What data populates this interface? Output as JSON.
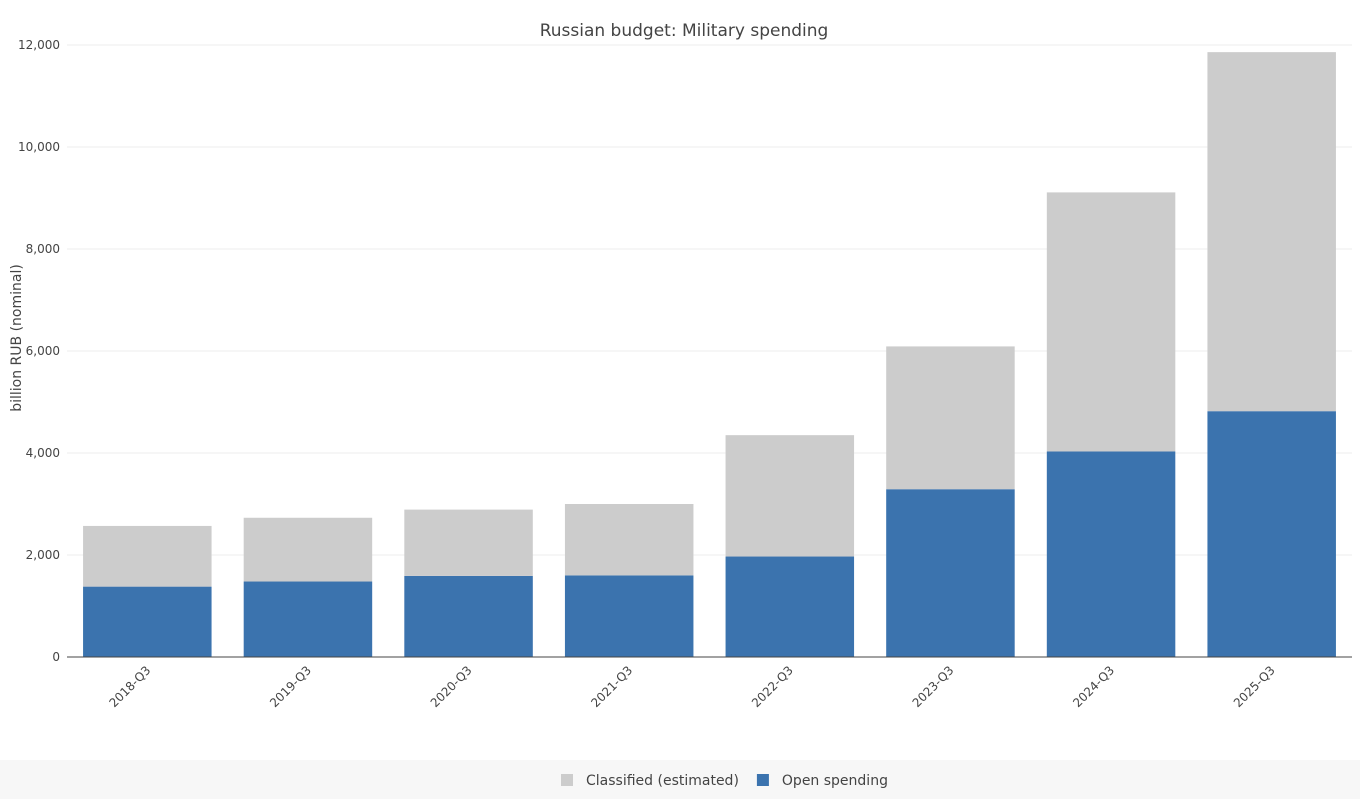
{
  "chart_data": {
    "type": "bar",
    "stacked": true,
    "title": "Russian budget: Military spending",
    "xlabel": "",
    "ylabel": "billion RUB (nominal)",
    "ylim": [
      0,
      12000
    ],
    "yticks": [
      0,
      2000,
      4000,
      6000,
      8000,
      10000,
      12000
    ],
    "ytick_labels": [
      "0",
      "2,000",
      "4,000",
      "6,000",
      "8,000",
      "10,000",
      "12,000"
    ],
    "categories": [
      "2018-Q3",
      "2019-Q3",
      "2020-Q3",
      "2021-Q3",
      "2022-Q3",
      "2023-Q3",
      "2024-Q3",
      "2025-Q3"
    ],
    "series": [
      {
        "name": "Open spending",
        "color": "#3b73ae",
        "values": [
          1380,
          1480,
          1590,
          1600,
          1970,
          3290,
          4030,
          4820
        ]
      },
      {
        "name": "Classified (estimated)",
        "color": "#cccccc",
        "values": [
          1190,
          1250,
          1300,
          1400,
          2380,
          2800,
          5080,
          7040
        ]
      }
    ],
    "legend_order": [
      "Classified (estimated)",
      "Open spending"
    ],
    "grid": true,
    "legend_position": "bottom-center"
  }
}
